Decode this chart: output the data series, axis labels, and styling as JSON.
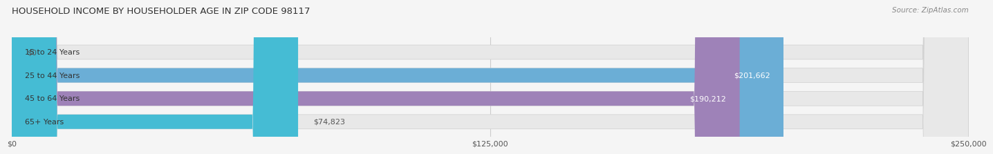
{
  "title": "HOUSEHOLD INCOME BY HOUSEHOLDER AGE IN ZIP CODE 98117",
  "source": "Source: ZipAtlas.com",
  "categories": [
    "15 to 24 Years",
    "25 to 44 Years",
    "45 to 64 Years",
    "65+ Years"
  ],
  "values": [
    0,
    201662,
    190212,
    74823
  ],
  "bar_colors": [
    "#f4a0a0",
    "#6baed6",
    "#9e82b8",
    "#45bcd4"
  ],
  "value_labels": [
    "$0",
    "$201,662",
    "$190,212",
    "$74,823"
  ],
  "xmax": 250000,
  "xtick_labels": [
    "$0",
    "$125,000",
    "$250,000"
  ],
  "xtick_values": [
    0,
    125000,
    250000
  ],
  "background_color": "#f5f5f5",
  "bar_bg_color": "#e8e8e8",
  "bar_bg_edge_color": "#d0d0d0"
}
